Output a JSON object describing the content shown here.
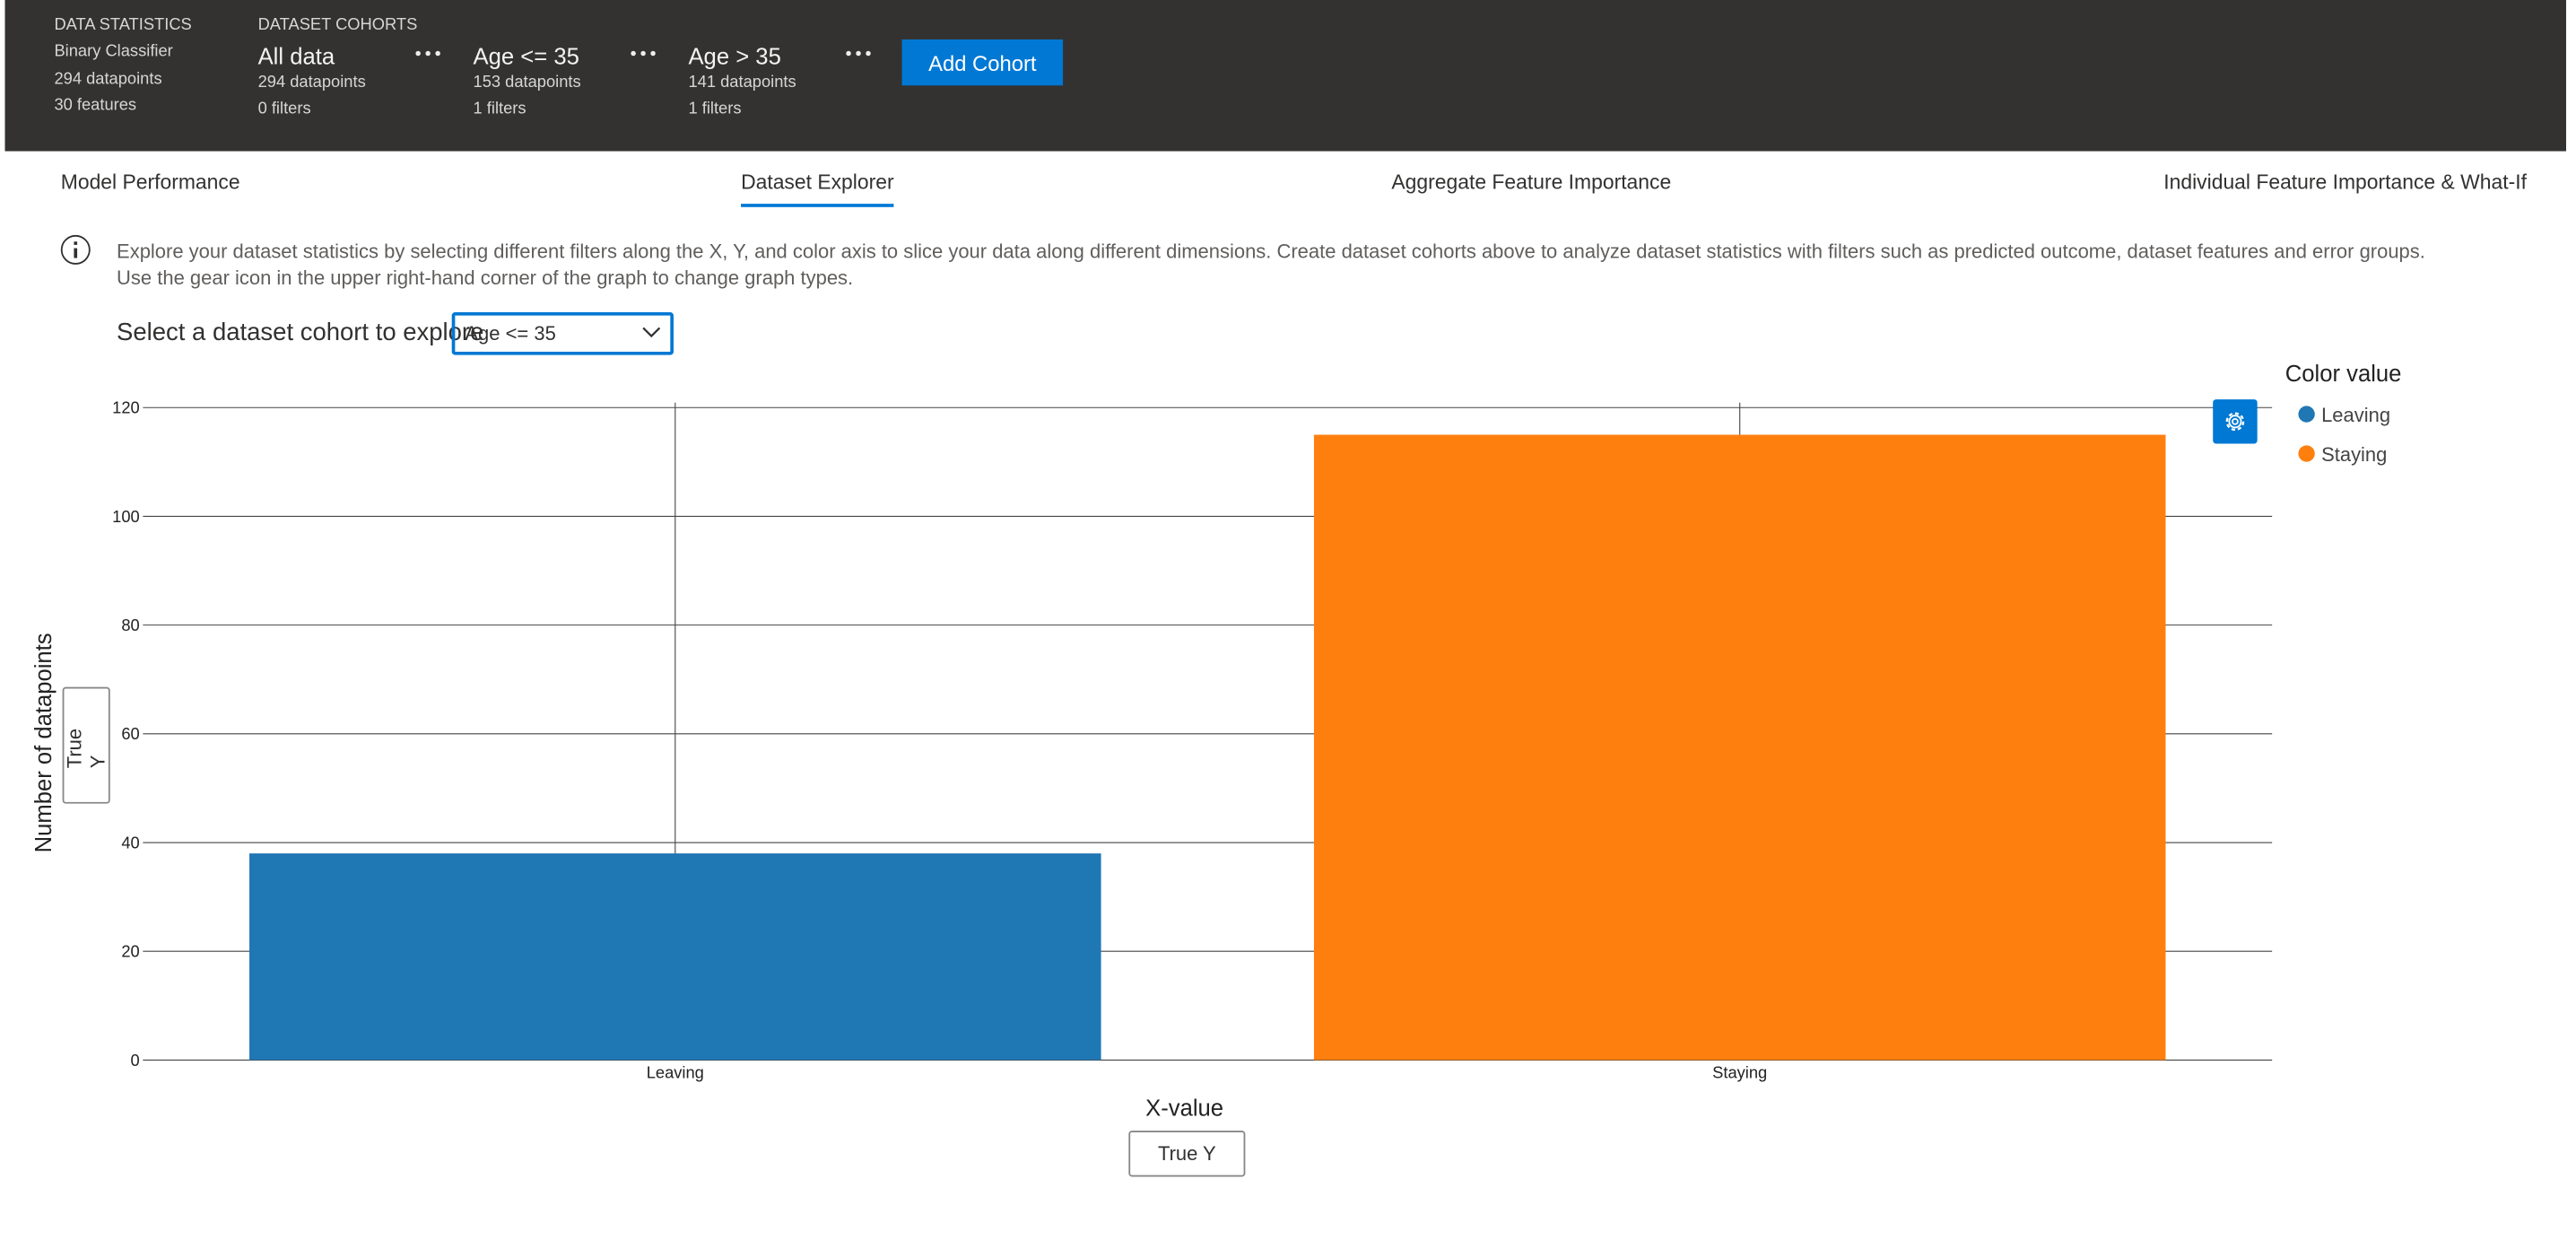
{
  "header": {
    "stats": {
      "title": "DATA STATISTICS",
      "lines": [
        "Binary Classifier",
        "294 datapoints",
        "30 features"
      ]
    },
    "cohorts_title": "DATASET COHORTS",
    "cohorts": [
      {
        "name": "All data",
        "datapoints": "294 datapoints",
        "filters": "0 filters"
      },
      {
        "name": "Age <= 35",
        "datapoints": "153 datapoints",
        "filters": "1 filters"
      },
      {
        "name": "Age > 35",
        "datapoints": "141 datapoints",
        "filters": "1 filters"
      }
    ],
    "add_button": "Add Cohort"
  },
  "tabs": [
    "Model Performance",
    "Dataset Explorer",
    "Aggregate Feature Importance",
    "Individual Feature Importance & What-If"
  ],
  "info": {
    "lines": [
      "Explore your dataset statistics by selecting different filters along the X, Y, and color axis to slice your data along different dimensions. Create dataset cohorts above to analyze dataset statistics with filters such as predicted outcome, dataset features and error groups.",
      "Use the gear icon in the upper right-hand corner of the graph to change graph types."
    ]
  },
  "cohort_selector": {
    "label": "Select a dataset cohort to explore",
    "selected": "Age <= 35"
  },
  "chart_data": {
    "type": "bar",
    "categories": [
      "Leaving",
      "Staying"
    ],
    "series": [
      {
        "name": "Leaving",
        "color": "#1f77b4",
        "values": [
          38,
          null
        ]
      },
      {
        "name": "Staying",
        "color": "#ff7f0e",
        "values": [
          null,
          115
        ]
      }
    ],
    "ylim": [
      0,
      120
    ],
    "yticks": [
      0,
      20,
      40,
      60,
      80,
      100,
      120
    ],
    "grid": true,
    "y_label": "Number of datapoints",
    "x_label": "X-value",
    "y_axis_button": "True Y",
    "x_axis_button": "True Y",
    "legend_title": "Color value"
  }
}
